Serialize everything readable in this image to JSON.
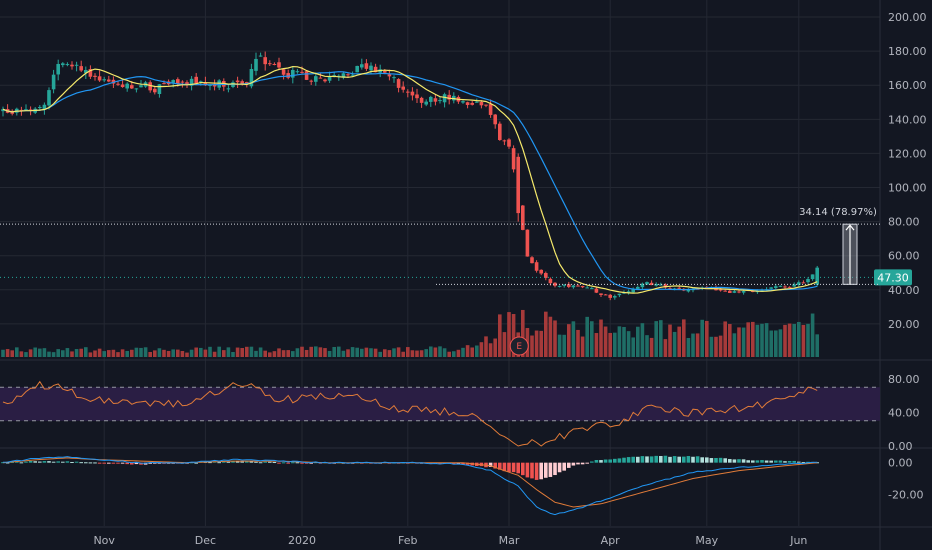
{
  "colors": {
    "background": "#131722",
    "grid": "#242833",
    "up": "#26a69a",
    "down": "#ef5350",
    "upVolume": "#1f6e66",
    "downVolume": "#a63a3a",
    "ma_fast": "#f5e96b",
    "ma_slow": "#2196f3",
    "rsi_line": "#e07b39",
    "rsi_band": "#2a1e44",
    "macd_line": "#2196f3",
    "signal_line": "#e07b39",
    "hist_pos_strong": "#26a69a",
    "hist_pos_weak": "#b2dfdb",
    "hist_neg_strong": "#ef5350",
    "hist_neg_weak": "#ffcdd2",
    "price_badge": "#26a69a",
    "text": "#b2b5be"
  },
  "chart_data": [
    {
      "type": "candlestick",
      "panel": "price",
      "ylim": [
        0,
        210
      ],
      "y_ticks": [
        "20.00",
        "40.00",
        "60.00",
        "80.00",
        "100.00",
        "120.00",
        "140.00",
        "160.00",
        "180.00",
        "200.00"
      ],
      "x_ticks": [
        "Nov",
        "Dec",
        "2020",
        "Feb",
        "Mar",
        "Apr",
        "May",
        "Jun"
      ],
      "anchors_close": [
        [
          0,
          145
        ],
        [
          6,
          146
        ],
        [
          9,
          150
        ],
        [
          11,
          168
        ],
        [
          13,
          175
        ],
        [
          15,
          172
        ],
        [
          17,
          168
        ],
        [
          20,
          165
        ],
        [
          23,
          163
        ],
        [
          26,
          160
        ],
        [
          30,
          160
        ],
        [
          34,
          158
        ],
        [
          38,
          162
        ],
        [
          42,
          162
        ],
        [
          46,
          160
        ],
        [
          50,
          160
        ],
        [
          53,
          163
        ],
        [
          56,
          177
        ],
        [
          58,
          172
        ],
        [
          61,
          168
        ],
        [
          64,
          166
        ],
        [
          68,
          165
        ],
        [
          72,
          165
        ],
        [
          76,
          168
        ],
        [
          79,
          172
        ],
        [
          82,
          168
        ],
        [
          86,
          160
        ],
        [
          89,
          152
        ],
        [
          92,
          150
        ],
        [
          95,
          152
        ],
        [
          98,
          153
        ],
        [
          102,
          150
        ],
        [
          106,
          145
        ],
        [
          108,
          130
        ],
        [
          110,
          125
        ],
        [
          111,
          110
        ],
        [
          112,
          90
        ],
        [
          113,
          75
        ],
        [
          114,
          60
        ],
        [
          116,
          50
        ],
        [
          118,
          48
        ],
        [
          120,
          42
        ],
        [
          124,
          42
        ],
        [
          128,
          40
        ],
        [
          132,
          36
        ],
        [
          136,
          38
        ],
        [
          140,
          44
        ],
        [
          144,
          42
        ],
        [
          148,
          40
        ],
        [
          152,
          42
        ],
        [
          156,
          40
        ],
        [
          160,
          38
        ],
        [
          164,
          40
        ],
        [
          168,
          42
        ],
        [
          172,
          43
        ],
        [
          175,
          46
        ],
        [
          176,
          50
        ],
        [
          177,
          53
        ]
      ],
      "volume_ylim": [
        0,
        700
      ],
      "volume_levels": [
        [
          0,
          60
        ],
        [
          100,
          70
        ],
        [
          106,
          150
        ],
        [
          108,
          280
        ],
        [
          112,
          300
        ],
        [
          120,
          280
        ],
        [
          140,
          250
        ],
        [
          170,
          230
        ],
        [
          177,
          280
        ]
      ],
      "ma_fast": {
        "period": 10
      },
      "ma_slow": {
        "period": 20
      },
      "last_price_label": "47.30",
      "measure_label": "34.14 (78.97%)",
      "earnings_marker": "E"
    },
    {
      "type": "line",
      "panel": "rsi",
      "ylim": [
        0,
        100
      ],
      "y_ticks": [
        "0.00",
        "40.00",
        "80.00"
      ],
      "band": [
        30,
        70
      ],
      "series": [
        {
          "values_anchor": [
            [
              0,
              50
            ],
            [
              8,
              72
            ],
            [
              12,
              70
            ],
            [
              20,
              55
            ],
            [
              30,
              52
            ],
            [
              40,
              50
            ],
            [
              52,
              75
            ],
            [
              60,
              55
            ],
            [
              75,
              60
            ],
            [
              85,
              45
            ],
            [
              100,
              40
            ],
            [
              106,
              28
            ],
            [
              110,
              5
            ],
            [
              114,
              2
            ],
            [
              118,
              5
            ],
            [
              124,
              18
            ],
            [
              130,
              25
            ],
            [
              135,
              30
            ],
            [
              140,
              45
            ],
            [
              150,
              40
            ],
            [
              160,
              45
            ],
            [
              170,
              55
            ],
            [
              176,
              72
            ],
            [
              177,
              70
            ]
          ]
        }
      ]
    },
    {
      "type": "bar+line",
      "panel": "macd",
      "ylim": [
        -40,
        8
      ],
      "y_ticks": [
        "-20.00",
        "0.00"
      ],
      "series": [
        {
          "values_anchor": [
            [
              0,
              0
            ],
            [
              8,
              3
            ],
            [
              14,
              4
            ],
            [
              20,
              2
            ],
            [
              30,
              0
            ],
            [
              40,
              0
            ],
            [
              50,
              2
            ],
            [
              60,
              1
            ],
            [
              70,
              0
            ],
            [
              80,
              0
            ],
            [
              90,
              0
            ],
            [
              100,
              -1
            ],
            [
              106,
              -5
            ],
            [
              112,
              -15
            ],
            [
              116,
              -28
            ],
            [
              120,
              -33
            ],
            [
              126,
              -28
            ],
            [
              132,
              -22
            ],
            [
              140,
              -14
            ],
            [
              150,
              -6
            ],
            [
              160,
              -3
            ],
            [
              170,
              -1
            ],
            [
              177,
              0
            ]
          ]
        },
        {
          "values_anchor": [
            [
              0,
              0
            ],
            [
              8,
              2
            ],
            [
              14,
              3
            ],
            [
              20,
              2
            ],
            [
              30,
              1
            ],
            [
              40,
              0
            ],
            [
              50,
              1
            ],
            [
              60,
              1
            ],
            [
              70,
              0
            ],
            [
              80,
              0
            ],
            [
              90,
              0
            ],
            [
              100,
              0
            ],
            [
              106,
              -2
            ],
            [
              112,
              -8
            ],
            [
              116,
              -17
            ],
            [
              120,
              -25
            ],
            [
              124,
              -28
            ],
            [
              130,
              -26
            ],
            [
              140,
              -18
            ],
            [
              150,
              -10
            ],
            [
              160,
              -5
            ],
            [
              170,
              -2
            ],
            [
              177,
              0
            ]
          ]
        }
      ]
    }
  ]
}
